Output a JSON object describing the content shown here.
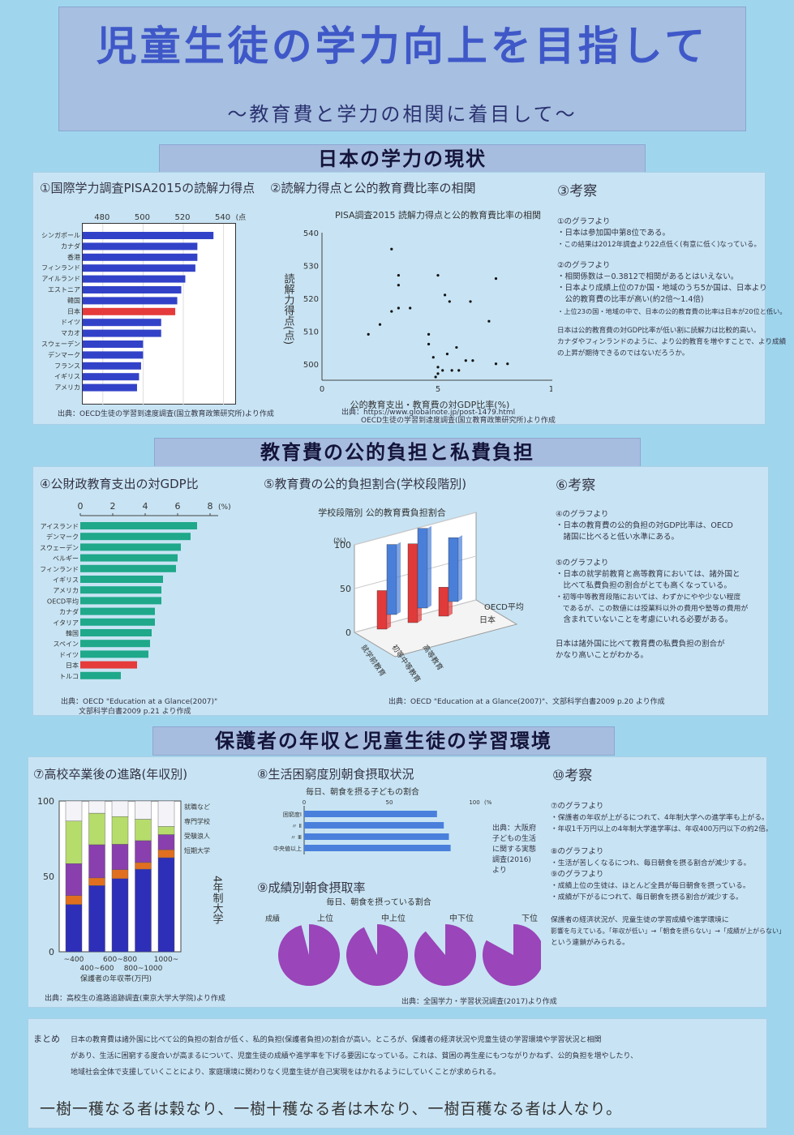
{
  "title": "児童生徒の学力向上を目指して",
  "subtitle": "～教育費と学力の相関に着目して～",
  "sections": {
    "s1": "日本の学力の現状",
    "s2": "教育費の公的負担と私費負担",
    "s3": "保護者の年収と児童生徒の学習環境"
  },
  "panels": {
    "p1": "①国際学力調査PISA2015の読解力得点",
    "p2": "②読解力得点と公的教育費比率の相関",
    "p3": "③考察",
    "p4": "④公財政教育支出の対GDP比",
    "p5": "⑤教育費の公的負担割合(学校段階別)",
    "p6": "⑥考察",
    "p7": "⑦高校卒業後の進路(年収別)",
    "p8": "⑧生活困窮度別朝食摂取状況",
    "p9": "⑨成績別朝食摂取率",
    "p10": "⑩考察"
  },
  "sources": {
    "c1": "出典：OECD生徒の学習到達度調査(国立教育政策研究所)より作成",
    "c2a": "出典：https://www.globalnote.jp/post-1479.html",
    "c2b": "OECD生徒の学習到達度調査(国立教育政策研究所)より作成",
    "c4a": "出典：OECD \"Education at a Glance(2007)\"",
    "c4b": "文部科学白書2009 p.21 より作成",
    "c5": "出典：OECD \"Education at a Glance(2007)\"、文部科学白書2009 p.20 より作成",
    "c7": "出典：高校生の進路追跡調査(東京大学大学院)より作成",
    "c8": "出典：大阪府子どもの生活に関する実態調査(2016)より",
    "c9": "出典：全国学力・学習状況調査(2017)より作成"
  },
  "chart_data": [
    {
      "id": "c1",
      "type": "bar",
      "orientation": "horizontal",
      "title": "",
      "categories": [
        "シンガポール",
        "カナダ",
        "香港",
        "フィンランド",
        "アイルランド",
        "エストニア",
        "韓国",
        "日本",
        "ドイツ",
        "マカオ",
        "スウェーデン",
        "デンマーク",
        "フランス",
        "イギリス",
        "アメリカ"
      ],
      "values": [
        535,
        527,
        527,
        526,
        521,
        519,
        517,
        516,
        509,
        509,
        500,
        500,
        499,
        498,
        497
      ],
      "highlight": "日本",
      "xlim": [
        470,
        545
      ],
      "xticks": [
        480,
        500,
        520,
        540
      ],
      "xunit": "(点)",
      "colors": {
        "bar": "#3242c8",
        "highlight": "#e53b3b"
      }
    },
    {
      "id": "c2",
      "type": "scatter",
      "title": "PISA調査2015 読解力得点と公的教育費比率の相関",
      "xlabel": "公的教育支出・教育費の対GDP比率(%)",
      "ylabel": "読解力得点(点)",
      "xlim": [
        0,
        10
      ],
      "ylim": [
        495,
        540
      ],
      "xticks": [
        0,
        5,
        10
      ],
      "yticks": [
        500,
        510,
        520,
        530,
        540
      ],
      "points": [
        [
          3.0,
          535
        ],
        [
          3.3,
          527
        ],
        [
          5.0,
          527
        ],
        [
          7.5,
          526
        ],
        [
          5.3,
          521
        ],
        [
          5.5,
          519
        ],
        [
          3.3,
          517
        ],
        [
          3.0,
          516
        ],
        [
          4.6,
          509
        ],
        [
          2.0,
          509
        ],
        [
          7.5,
          500
        ],
        [
          5.0,
          499
        ],
        [
          5.0,
          497
        ],
        [
          5.6,
          498
        ],
        [
          2.5,
          512
        ],
        [
          3.3,
          524
        ],
        [
          3.8,
          517
        ],
        [
          6.4,
          519
        ],
        [
          7.2,
          513
        ],
        [
          4.6,
          506
        ],
        [
          5.8,
          505
        ],
        [
          4.8,
          502
        ],
        [
          5.4,
          503
        ],
        [
          6.2,
          501
        ],
        [
          6.5,
          501
        ],
        [
          4.9,
          496
        ],
        [
          5.2,
          498
        ],
        [
          8.0,
          500
        ],
        [
          5.9,
          498
        ]
      ]
    },
    {
      "id": "c4",
      "type": "bar",
      "orientation": "horizontal",
      "categories": [
        "アイスランド",
        "デンマーク",
        "スウェーデン",
        "ベルギー",
        "フィンランド",
        "イギリス",
        "アメリカ",
        "OECD平均",
        "カナダ",
        "イタリア",
        "韓国",
        "スペイン",
        "ドイツ",
        "日本",
        "トルコ"
      ],
      "values": [
        7.2,
        6.8,
        6.2,
        6.0,
        5.9,
        5.1,
        5.0,
        5.0,
        4.6,
        4.6,
        4.4,
        4.3,
        4.2,
        3.5,
        2.5
      ],
      "highlight": "日本",
      "xlim": [
        0,
        8.5
      ],
      "xticks": [
        0,
        2,
        4,
        6,
        8
      ],
      "xunit": "(%)",
      "colors": {
        "bar": "#1fa88a",
        "highlight": "#e53b3b"
      }
    },
    {
      "id": "c5",
      "type": "bar",
      "title": "学校段階別 公的教育費負担割合",
      "categories": [
        "就学前教育",
        "初等中等教育",
        "高等教育"
      ],
      "series": [
        {
          "name": "日本",
          "values": [
            44,
            90,
            33
          ]
        },
        {
          "name": "OECD平均",
          "values": [
            80,
            91,
            73
          ]
        }
      ],
      "ylim": [
        0,
        100
      ],
      "yticks": [
        0,
        50,
        100
      ],
      "yunit": "(%)",
      "colors": {
        "日本": "#e03a3a",
        "OECD平均": "#4a7fd9"
      }
    },
    {
      "id": "c7",
      "type": "bar",
      "stacked": true,
      "categories": [
        "~400",
        "400~600",
        "600~800",
        "800~1000",
        "1000~"
      ],
      "series": [
        {
          "name": "4年制大学",
          "values": [
            31.4,
            43.9,
            48.5,
            54.8,
            62.4
          ]
        },
        {
          "name": "短期大学",
          "values": [
            5.9,
            5.1,
            6.0,
            4.4,
            5.3
          ]
        },
        {
          "name": "専門学校",
          "values": [
            21.2,
            22.0,
            16.8,
            14.5,
            10.0
          ]
        },
        {
          "name": "就職など",
          "values": [
            28.2,
            20.9,
            18.4,
            14.2,
            5.4
          ]
        },
        {
          "name": "受験浪人",
          "values": [
            13.3,
            8.1,
            10.3,
            12.1,
            16.9
          ]
        }
      ],
      "ylim": [
        0,
        100
      ],
      "yticks": [
        0,
        50,
        100
      ],
      "xlabel": "保護者の年収帯(万円)",
      "legend_labels": [
        "就職など",
        "専門学校",
        "受験浪人",
        "短期大学"
      ],
      "annot": "4年制大学",
      "colors": {
        "4年制大学": "#2e2fb8",
        "短期大学": "#e07020",
        "専門学校": "#8a3fae",
        "就職など": "#b6dc6c",
        "受験浪人": "#f4f4f8"
      }
    },
    {
      "id": "c8",
      "type": "bar",
      "orientation": "horizontal",
      "title": "毎日、朝食を摂る子どもの割合",
      "categories": [
        "困窮度Ⅰ",
        "Ⅱ",
        "Ⅲ",
        "中央値以上"
      ],
      "cat_marks": [
        "",
        "〃",
        "〃",
        ""
      ],
      "values": [
        78,
        82,
        85,
        86
      ],
      "xlim": [
        0,
        100
      ],
      "xticks": [
        0,
        50,
        100
      ],
      "xunit": "(%)",
      "colors": {
        "bar": "#4a80dc"
      }
    },
    {
      "id": "c9",
      "type": "pie",
      "title": "毎日、朝食を摂っている割合",
      "axis_label": "成績",
      "categories": [
        "上位",
        "中上位",
        "中下位",
        "下位"
      ],
      "values": [
        96.0,
        93.0,
        89.0,
        83.0
      ],
      "colors": {
        "fill": "#9a45b9"
      }
    }
  ],
  "notes": {
    "n3": {
      "h1": "①のグラフより",
      "l1": [
        "・日本は参加国中第8位である。",
        "・この結果は2012年調査より22点低く(有意に低く)なっている。"
      ],
      "h2": "②のグラフより",
      "l2": [
        "・相関係数は－0.3812で相関があるとはいえない。",
        "・日本より成績上位の7か国・地域のうち5か国は、日本より",
        "　公的教育費の比率が高い(約2倍～1.4倍)",
        "・上位23の国・地域の中で、日本の公的教育費の比率は日本が20位と低い。"
      ],
      "c": [
        "日本は公的教育費の対GDP比率が低い割に読解力は比較的高い。",
        "カナダやフィンランドのように、より公的教育を増やすことで、より成績",
        "の上昇が期待できるのではないだろうか。"
      ]
    },
    "n6": {
      "h1": "④のグラフより",
      "l1": [
        "・日本の教育費の公的負担の対GDP比率は、OECD",
        "　諸国に比べると低い水準にある。"
      ],
      "h2": "⑤のグラフより",
      "l2": [
        "・日本の就学前教育と高等教育においては、諸外国と",
        "　比べて私費負担の割合がとても高くなっている。",
        "・初等中等教育段階においては、わずかにやや少ない程度",
        "　であるが、この数値には授業料以外の費用や塾等の費用が",
        "　含まれていないことを考慮にいれる必要がある。"
      ],
      "c": [
        "日本は諸外国に比べて教育費の私費負担の割合が",
        "かなり高いことがわかる。"
      ]
    },
    "n10": {
      "h1": "⑦のグラフより",
      "l1": [
        "・保護者の年収が上がるにつれて、4年制大学への進学率も上がる。",
        "・年収1千万円以上の4年制大学進学率は、年収400万円以下の約2倍。"
      ],
      "h2": "⑧のグラフより",
      "l2": [
        "・生活が苦しくなるにつれ、毎日朝食を摂る割合が減少する。"
      ],
      "h3": "⑨のグラフより",
      "l3": [
        "・成績上位の生徒は、ほとんど全員が毎日朝食を摂っている。",
        "・成績が下がるにつれて、毎日朝食を摂る割合が減少する。"
      ],
      "c": [
        "保護者の経済状況が、児童生徒の学習成績や進学環境に",
        "影響を与えている。「年収が低い」→「朝食を摂らない」→「成績が上がらない」",
        "という連鎖がみられる。"
      ]
    }
  },
  "summary": {
    "label": "まとめ",
    "lines": [
      "日本の教育費は諸外国に比べて公的負担の割合が低く、私的負担(保護者負担)の割合が高い。ところが、保護者の経済状況や児童生徒の学習環境や学習状況と相関",
      "があり、生活に困窮する度合いが高まるについて、児童生徒の成績や進学率を下げる要因になっている。これは、貧困の再生産にもつながりかねず、公的負担を増やしたり、",
      "地域社会全体で支援していくことにより、家庭環境に関わりなく児童生徒が自己実現をはかれるようにしていくことが求められる。"
    ],
    "quote": "一樹一穫なる者は穀なり、一樹十穫なる者は木なり、一樹百穫なる者は人なり。"
  }
}
